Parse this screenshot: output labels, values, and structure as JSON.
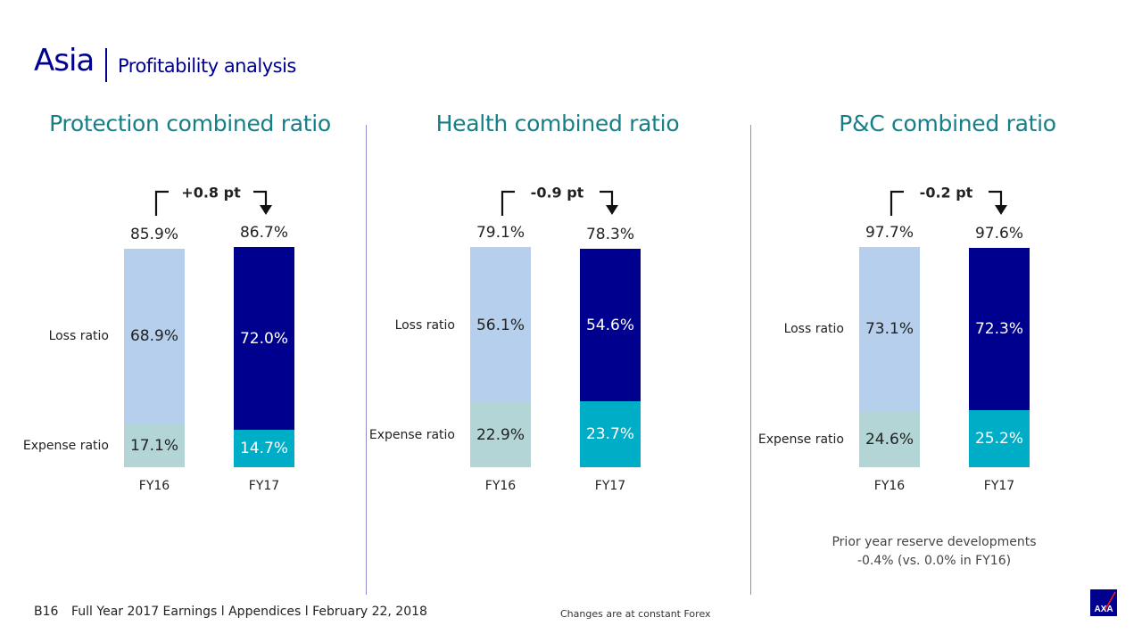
{
  "header": {
    "title": "Asia",
    "subtitle": "Profitability analysis"
  },
  "colors": {
    "title": "#00008f",
    "chart_title": "#167e86",
    "fy16_loss": "#b6cfec",
    "fy16_expense": "#b3d5d6",
    "fy17_loss": "#00008f",
    "fy17_expense": "#00adc6"
  },
  "chart_data": [
    {
      "type": "bar",
      "stacked": true,
      "title": "Protection combined ratio",
      "categories": [
        "FY16",
        "FY17"
      ],
      "series": [
        {
          "name": "Expense ratio",
          "values": [
            17.1,
            14.7
          ],
          "labels": [
            "17.1%",
            "14.7%"
          ]
        },
        {
          "name": "Loss ratio",
          "values": [
            68.9,
            72.0
          ],
          "labels": [
            "68.9%",
            "72.0%"
          ]
        }
      ],
      "totals": [
        "85.9%",
        "86.7%"
      ],
      "change": "+0.8 pt"
    },
    {
      "type": "bar",
      "stacked": true,
      "title": "Health combined ratio",
      "categories": [
        "FY16",
        "FY17"
      ],
      "series": [
        {
          "name": "Expense ratio",
          "values": [
            22.9,
            23.7
          ],
          "labels": [
            "22.9%",
            "23.7%"
          ]
        },
        {
          "name": "Loss ratio",
          "values": [
            56.1,
            54.6
          ],
          "labels": [
            "56.1%",
            "54.6%"
          ]
        }
      ],
      "totals": [
        "79.1%",
        "78.3%"
      ],
      "change": "-0.9 pt"
    },
    {
      "type": "bar",
      "stacked": true,
      "title": "P&C combined ratio",
      "categories": [
        "FY16",
        "FY17"
      ],
      "series": [
        {
          "name": "Expense ratio",
          "values": [
            24.6,
            25.2
          ],
          "labels": [
            "24.6%",
            "25.2%"
          ]
        },
        {
          "name": "Loss ratio",
          "values": [
            73.1,
            72.3
          ],
          "labels": [
            "73.1%",
            "72.3%"
          ]
        }
      ],
      "totals": [
        "97.7%",
        "97.6%"
      ],
      "change": "-0.2 pt"
    }
  ],
  "reserve_note": {
    "line1": "Prior year reserve developments",
    "line2": "-0.4% (vs. 0.0% in FY16)"
  },
  "footer": {
    "page": "B16",
    "text": "Full Year 2017 Earnings l Appendices l February 22, 2018",
    "note": "Changes are at constant Forex"
  },
  "logo": "AXA"
}
